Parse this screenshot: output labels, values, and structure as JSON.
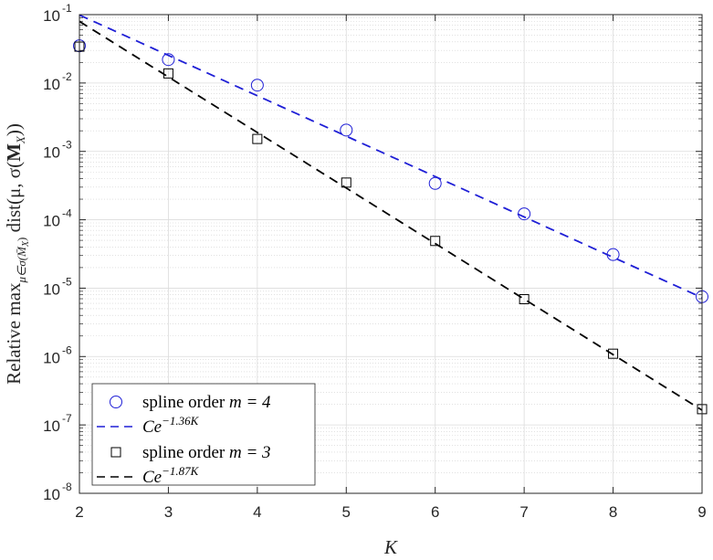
{
  "chart_data": {
    "type": "scatter",
    "xlabel": "K",
    "ylabel_parts": {
      "prefix": "Relative max",
      "subscript": "μ∈σ(M̄",
      "subscript_sub": "X",
      "subscript_close": ")",
      "middle": " dist(μ, σ(",
      "bold": "M",
      "bold_sub": "X",
      "suffix": "))"
    },
    "x": [
      2,
      3,
      4,
      5,
      6,
      7,
      8,
      9
    ],
    "xlim": [
      2,
      9
    ],
    "xticks": [
      "2",
      "3",
      "4",
      "5",
      "6",
      "7",
      "8",
      "9"
    ],
    "ylim": [
      1e-08,
      0.1
    ],
    "yscale": "log",
    "ytick_base": "10",
    "ytick_exponents": [
      "-8",
      "-7",
      "-6",
      "-5",
      "-4",
      "-3",
      "-2",
      "-1"
    ],
    "grid": true,
    "legend_position": "bottom-left",
    "series": [
      {
        "name": "spline order m = 4",
        "legend_text": "spline order ",
        "legend_math": "m = 4",
        "marker": "circle",
        "color": "#1f1fd6",
        "values": [
          0.035,
          0.022,
          0.0093,
          0.00205,
          0.00034,
          0.000122,
          3.1e-05,
          7.5e-06
        ]
      },
      {
        "name": "Ce^-1.36K",
        "legend_text": "Ce",
        "legend_sup": "−1.36K",
        "line": "dashed",
        "color": "#1f1fd6",
        "fit": {
          "C": 1.5,
          "rate": 1.36
        }
      },
      {
        "name": "spline order m = 3",
        "legend_text": "spline order ",
        "legend_math": "m = 3",
        "marker": "square",
        "color": "#000000",
        "values": [
          0.034,
          0.0138,
          0.00152,
          0.00035,
          4.9e-05,
          6.9e-06,
          1.1e-06,
          1.7e-07
        ]
      },
      {
        "name": "Ce^-1.87K",
        "legend_text": "Ce",
        "legend_sup": "−1.87K",
        "line": "dashed",
        "color": "#000000",
        "fit": {
          "C": 3.35,
          "rate": 1.87
        }
      }
    ]
  }
}
